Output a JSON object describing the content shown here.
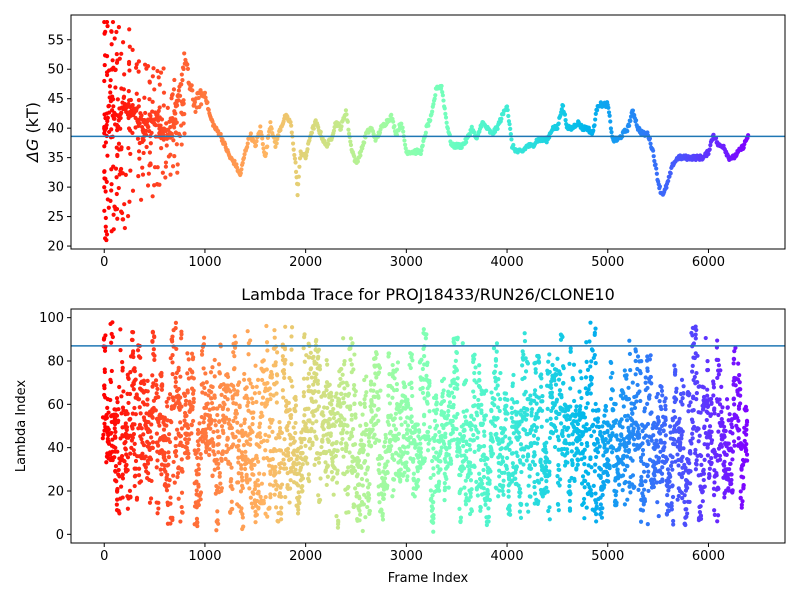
{
  "chart_data": [
    {
      "type": "scatter",
      "title": "",
      "xlabel": "",
      "ylabel_symbol": "ΔG",
      "ylabel_unit": " (kT)",
      "xlim": [
        -330,
        6760
      ],
      "ylim": [
        19.5,
        59.2
      ],
      "xticks": [
        0,
        1000,
        2000,
        3000,
        4000,
        5000,
        6000
      ],
      "yticks": [
        20,
        25,
        30,
        35,
        40,
        45,
        50,
        55
      ],
      "hline": 38.6,
      "hline_color": "#1f77b4",
      "colormap": "rainbow",
      "color_by": "frame index (early = red, late = purple)",
      "x_max": 6400,
      "trace": [
        [
          0,
          40
        ],
        [
          60,
          45
        ],
        [
          120,
          41
        ],
        [
          200,
          44
        ],
        [
          300,
          43
        ],
        [
          400,
          40
        ],
        [
          500,
          42
        ],
        [
          600,
          39
        ],
        [
          700,
          41
        ],
        [
          800,
          52
        ],
        [
          850,
          47
        ],
        [
          900,
          44
        ],
        [
          950,
          45
        ],
        [
          1000,
          46
        ],
        [
          1050,
          42
        ],
        [
          1100,
          40
        ],
        [
          1150,
          39
        ],
        [
          1200,
          37
        ],
        [
          1250,
          35
        ],
        [
          1300,
          34
        ],
        [
          1350,
          32
        ],
        [
          1400,
          36
        ],
        [
          1450,
          39
        ],
        [
          1500,
          37
        ],
        [
          1550,
          40
        ],
        [
          1600,
          35
        ],
        [
          1650,
          41
        ],
        [
          1700,
          37
        ],
        [
          1750,
          40
        ],
        [
          1800,
          42
        ],
        [
          1850,
          41
        ],
        [
          1900,
          34
        ],
        [
          1920,
          29
        ],
        [
          1950,
          36
        ],
        [
          2000,
          35
        ],
        [
          2050,
          39
        ],
        [
          2100,
          41
        ],
        [
          2150,
          39
        ],
        [
          2200,
          37
        ],
        [
          2250,
          38
        ],
        [
          2300,
          41
        ],
        [
          2350,
          40
        ],
        [
          2400,
          43
        ],
        [
          2450,
          37
        ],
        [
          2500,
          34
        ],
        [
          2550,
          36
        ],
        [
          2600,
          39
        ],
        [
          2650,
          40
        ],
        [
          2700,
          38
        ],
        [
          2750,
          40
        ],
        [
          2800,
          41
        ],
        [
          2850,
          42
        ],
        [
          2900,
          39
        ],
        [
          2950,
          41
        ],
        [
          3000,
          36
        ],
        [
          3050,
          36
        ],
        [
          3100,
          36
        ],
        [
          3150,
          36
        ],
        [
          3200,
          40
        ],
        [
          3250,
          42
        ],
        [
          3300,
          47
        ],
        [
          3350,
          47
        ],
        [
          3400,
          41
        ],
        [
          3450,
          37
        ],
        [
          3500,
          37
        ],
        [
          3550,
          37
        ],
        [
          3600,
          38
        ],
        [
          3650,
          40
        ],
        [
          3700,
          38
        ],
        [
          3750,
          41
        ],
        [
          3800,
          40
        ],
        [
          3850,
          39
        ],
        [
          3900,
          40
        ],
        [
          3950,
          42
        ],
        [
          4000,
          44
        ],
        [
          4050,
          37
        ],
        [
          4100,
          36
        ],
        [
          4150,
          36
        ],
        [
          4200,
          37
        ],
        [
          4250,
          37
        ],
        [
          4300,
          38
        ],
        [
          4350,
          38
        ],
        [
          4400,
          38
        ],
        [
          4450,
          40
        ],
        [
          4500,
          40
        ],
        [
          4550,
          44
        ],
        [
          4600,
          40
        ],
        [
          4650,
          40
        ],
        [
          4700,
          41
        ],
        [
          4750,
          40
        ],
        [
          4800,
          40
        ],
        [
          4850,
          39
        ],
        [
          4900,
          44
        ],
        [
          4950,
          44
        ],
        [
          5000,
          44
        ],
        [
          5050,
          38
        ],
        [
          5100,
          38
        ],
        [
          5150,
          39
        ],
        [
          5200,
          40
        ],
        [
          5250,
          43
        ],
        [
          5300,
          40
        ],
        [
          5350,
          39
        ],
        [
          5400,
          39
        ],
        [
          5450,
          36
        ],
        [
          5500,
          31
        ],
        [
          5530,
          29
        ],
        [
          5560,
          29
        ],
        [
          5600,
          31
        ],
        [
          5650,
          34
        ],
        [
          5700,
          35
        ],
        [
          5750,
          35
        ],
        [
          5800,
          35
        ],
        [
          5850,
          35
        ],
        [
          5900,
          35
        ],
        [
          5950,
          35
        ],
        [
          6000,
          36
        ],
        [
          6050,
          39
        ],
        [
          6100,
          37
        ],
        [
          6150,
          37
        ],
        [
          6200,
          35
        ],
        [
          6250,
          35
        ],
        [
          6300,
          36
        ],
        [
          6350,
          37
        ],
        [
          6400,
          39
        ]
      ],
      "early_scatter_range": [
        0,
        800
      ],
      "early_scatter_ymin": 20,
      "early_scatter_ymax": 58
    },
    {
      "type": "scatter",
      "title": "Lambda Trace for PROJ18433/RUN26/CLONE10",
      "xlabel": "Frame Index",
      "ylabel": "Lambda Index",
      "xlim": [
        -330,
        6760
      ],
      "ylim": [
        -4,
        104
      ],
      "xticks": [
        0,
        1000,
        2000,
        3000,
        4000,
        5000,
        6000
      ],
      "yticks": [
        0,
        20,
        40,
        60,
        80,
        100
      ],
      "hline": 87,
      "hline_color": "#1f77b4",
      "colormap": "rainbow",
      "color_by": "frame index (early = red, late = purple)",
      "x_max": 6400,
      "lambda_range": [
        0,
        99
      ],
      "column_stride": 35,
      "points_per_column": 22
    }
  ]
}
